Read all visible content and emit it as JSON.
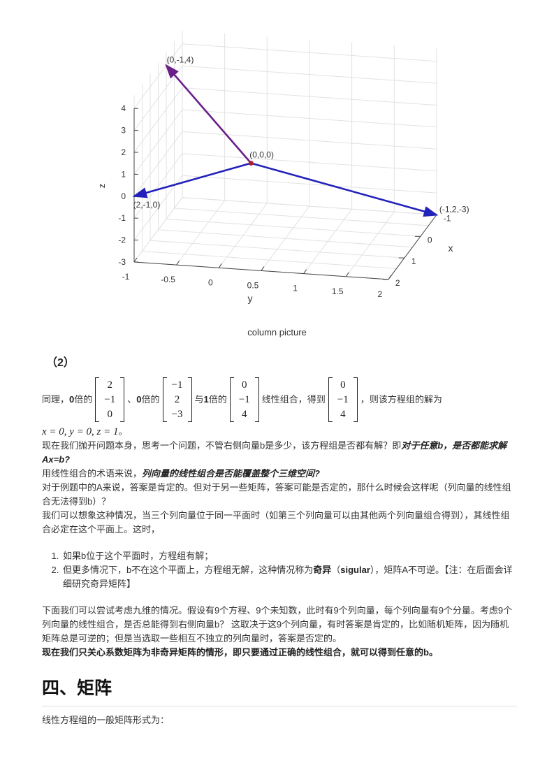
{
  "figure": {
    "caption": "column picture",
    "axes": {
      "xlabel": "x",
      "ylabel": "y",
      "zlabel": "z",
      "x_ticks": [
        "-1",
        "0",
        "1",
        "2"
      ],
      "y_ticks": [
        "-1",
        "-0.5",
        "0",
        "0.5",
        "1",
        "1.5",
        "2"
      ],
      "z_ticks": [
        "-3",
        "-2",
        "-1",
        "0",
        "1",
        "2",
        "3",
        "4"
      ],
      "grid": true
    },
    "vectors": [
      {
        "label": "(2,-1,0)",
        "end": [
          2,
          -1,
          0
        ],
        "color": "#2222bb"
      },
      {
        "label": "(-1,2,-3)",
        "end": [
          -1,
          2,
          -3
        ],
        "color": "#2222bb"
      },
      {
        "label": "(0,-1,4)",
        "end": [
          0,
          -1,
          4
        ],
        "color": "#6a1f8a"
      }
    ],
    "origin_label": "(0,0,0)",
    "origin_color": "#b0202a"
  },
  "section": {
    "sub": "（2）",
    "combo": {
      "t1": "同理，",
      "c1": "0",
      "t2": " 倍的",
      "m1": [
        "2",
        "−1",
        "0"
      ],
      "t3": "、",
      "c2": "0",
      "t4": " 倍的",
      "m2": [
        "−1",
        "2",
        "−3"
      ],
      "t5": "与",
      "c3": "1",
      "t6": " 倍的",
      "m3": [
        "0",
        "−1",
        "4"
      ],
      "t7": "线性组合，得到",
      "m4": [
        "0",
        "−1",
        "4"
      ],
      "t8": "，则该方程组的解为"
    },
    "solution": "x = 0, y = 0, z = 1",
    "solution_end": "。",
    "p1": "现在我们抛开问题本身，思考一个问题，不管右侧向量b是多少，该方程组是否都有解？即",
    "p1_em": "对于任意b，是否都能求解Ax=b?",
    "p2": "用线性组合的术语来说，",
    "p2_em": "列向量的线性组合是否能覆盖整个三维空间?",
    "p3": "对于例题中的A来说，答案是肯定的。但对于另一些矩阵，答案可能是否定的，那什么时候会这样呢（列向量的线性组合无法得到b）？",
    "p4": "我们可以想象这种情况，当三个列向量位于同一平面时（如第三个列向量可以由其他两个列向量组合得到），其线性组合必定在这个平面上。这时，",
    "list": {
      "item1": "如果b位于这个平面时，方程组有解；",
      "item2_a": "但更多情况下，b不在这个平面上，方程组无解，这种情况称为",
      "item2_b": "奇异",
      "item2_c": "（",
      "item2_d": "sigular",
      "item2_e": "），矩阵A不可逆。【注：在后面会详细研究奇异矩阵】"
    },
    "p5": "下面我们可以尝试考虑九维的情况。假设有9个方程、9个未知数，此时有9个列向量，每个列向量有9个分量。考虑9个列向量的线性组合，是否总能得到右侧向量b？ 这取决于这9个列向量，有时答案是肯定的，比如随机矩阵，因为随机矩阵总是可逆的；但是当选取一些相互不独立的列向量时，答案是否定的。",
    "p6": "现在我们只关心系数矩阵为非奇异矩阵的情形，即只要通过正确的线性组合，就可以得到任意的b。",
    "heading": "四、矩阵",
    "p7": "线性方程组的一般矩阵形式为："
  }
}
